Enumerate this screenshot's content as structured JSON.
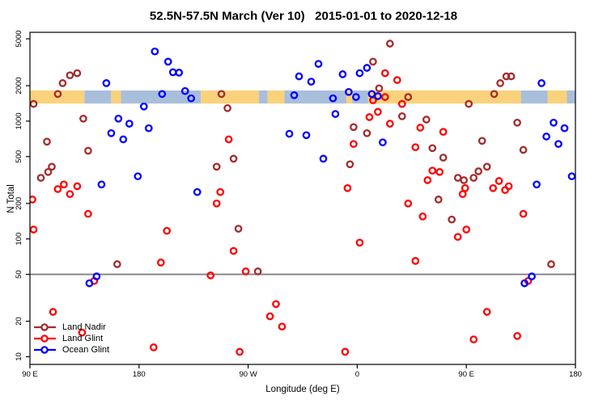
{
  "title": "52.5N-57.5N March (Ver 10)   2015-01-01 to 2020-12-18",
  "x_axis": {
    "label": "Longitude (deg E)",
    "ticks": [
      {
        "lon": 90,
        "label": "90 E"
      },
      {
        "lon": 180,
        "label": "180"
      },
      {
        "lon": 270,
        "label": "90 W"
      },
      {
        "lon": 360,
        "label": "0"
      },
      {
        "lon": 450,
        "label": "90 E"
      },
      {
        "lon": 540,
        "label": "180"
      }
    ]
  },
  "y_axis": {
    "label": "N Total",
    "scale": "log",
    "ticks": [
      10,
      20,
      50,
      100,
      200,
      500,
      1000,
      2000,
      5000
    ]
  },
  "reference_line": {
    "value": 50,
    "color": "#808080"
  },
  "map_band": {
    "meaning": "land(orange)/ocean(blue) strip along longitude for 52.5N-57.5N",
    "top_value": 1820,
    "bottom_value": 1410,
    "land_color": "#FAD27C",
    "ocean_color": "#A9BEDB",
    "segments": [
      {
        "type": "land",
        "from": 90,
        "to": 135
      },
      {
        "type": "ocean",
        "from": 135,
        "to": 157
      },
      {
        "type": "land",
        "from": 157,
        "to": 165
      },
      {
        "type": "ocean",
        "from": 165,
        "to": 231
      },
      {
        "type": "land",
        "from": 231,
        "to": 279
      },
      {
        "type": "ocean",
        "from": 279,
        "to": 286
      },
      {
        "type": "land",
        "from": 286,
        "to": 300
      },
      {
        "type": "ocean",
        "from": 300,
        "to": 351
      },
      {
        "type": "land",
        "from": 351,
        "to": 356
      },
      {
        "type": "ocean",
        "from": 356,
        "to": 369
      },
      {
        "type": "land",
        "from": 369,
        "to": 495
      },
      {
        "type": "ocean",
        "from": 495,
        "to": 517
      },
      {
        "type": "land",
        "from": 517,
        "to": 533
      },
      {
        "type": "ocean",
        "from": 533,
        "to": 540
      }
    ]
  },
  "legend": {
    "items": [
      {
        "label": "Land Nadir",
        "color": "#A52A2A"
      },
      {
        "label": "Land Glint",
        "color": "#FF0000"
      },
      {
        "label": "Ocean Glint",
        "color": "#0000FF"
      }
    ]
  },
  "chart_data": {
    "type": "scatter",
    "title": "52.5N-57.5N March (Ver 10)   2015-01-01 to 2020-12-18",
    "xlabel": "Longitude (deg E)",
    "ylabel": "N Total",
    "xlim": [
      90,
      540
    ],
    "ylim": [
      8.6,
      5674
    ],
    "y_scale": "log",
    "x_note": "axis runs eastward from 90E around the globe to 180 (450 deg span), longitudes >360 wrap",
    "marker": "open-circle",
    "series": [
      {
        "name": "Land Nadir",
        "color": "#A52A2A",
        "points": [
          [
            123,
            2450
          ],
          [
            129,
            2550
          ],
          [
            117,
            2100
          ],
          [
            113,
            1700
          ],
          [
            93,
            1400
          ],
          [
            134,
            1050
          ],
          [
            104,
            670
          ],
          [
            138,
            560
          ],
          [
            108,
            410
          ],
          [
            105,
            370
          ],
          [
            99,
            330
          ],
          [
            162,
            61
          ],
          [
            248,
            1700
          ],
          [
            253,
            1290
          ],
          [
            258,
            480
          ],
          [
            244,
            410
          ],
          [
            262,
            122
          ],
          [
            278,
            53
          ],
          [
            373,
            3200
          ],
          [
            387,
            4550
          ],
          [
            378,
            1900
          ],
          [
            402,
            1600
          ],
          [
            397,
            1100
          ],
          [
            417,
            1030
          ],
          [
            357,
            890
          ],
          [
            368,
            790
          ],
          [
            422,
            590
          ],
          [
            354,
            430
          ],
          [
            431,
            490
          ],
          [
            427,
            216
          ],
          [
            438,
            146
          ],
          [
            463,
            680
          ],
          [
            467,
            410
          ],
          [
            460,
            375
          ],
          [
            456,
            330
          ],
          [
            443,
            330
          ],
          [
            448,
            315
          ],
          [
            478,
            2100
          ],
          [
            483,
            2400
          ],
          [
            487,
            2400
          ],
          [
            473,
            1700
          ],
          [
            452,
            1400
          ],
          [
            492,
            970
          ],
          [
            497,
            570
          ],
          [
            520,
            61
          ]
        ]
      },
      {
        "name": "Land Glint",
        "color": "#FF0000",
        "points": [
          [
            118,
            290
          ],
          [
            113,
            265
          ],
          [
            129,
            280
          ],
          [
            123,
            240
          ],
          [
            92,
            216
          ],
          [
            138,
            163
          ],
          [
            93,
            120
          ],
          [
            203,
            117
          ],
          [
            198,
            63
          ],
          [
            109,
            24
          ],
          [
            133,
            16
          ],
          [
            192,
            12
          ],
          [
            143,
            44
          ],
          [
            254,
            700
          ],
          [
            247,
            250
          ],
          [
            244,
            200
          ],
          [
            258,
            79
          ],
          [
            239,
            49
          ],
          [
            268,
            53
          ],
          [
            293,
            28
          ],
          [
            288,
            22
          ],
          [
            298,
            18
          ],
          [
            263,
            11
          ],
          [
            383,
            2550
          ],
          [
            393,
            2230
          ],
          [
            373,
            1500
          ],
          [
            383,
            1600
          ],
          [
            397,
            1400
          ],
          [
            377,
            1200
          ],
          [
            370,
            1080
          ],
          [
            387,
            950
          ],
          [
            412,
            880
          ],
          [
            357,
            640
          ],
          [
            408,
            600
          ],
          [
            422,
            380
          ],
          [
            428,
            370
          ],
          [
            418,
            315
          ],
          [
            352,
            270
          ],
          [
            402,
            200
          ],
          [
            414,
            155
          ],
          [
            362,
            93
          ],
          [
            408,
            65
          ],
          [
            350,
            11
          ],
          [
            431,
            810
          ],
          [
            449,
            270
          ],
          [
            477,
            310
          ],
          [
            472,
            270
          ],
          [
            482,
            260
          ],
          [
            485,
            280
          ],
          [
            447,
            240
          ],
          [
            497,
            163
          ],
          [
            450,
            120
          ],
          [
            443,
            104
          ],
          [
            501,
            44
          ],
          [
            467,
            24
          ],
          [
            456,
            14
          ],
          [
            492,
            15
          ]
        ]
      },
      {
        "name": "Ocean Glint",
        "color": "#0000FF",
        "points": [
          [
            193,
            3900
          ],
          [
            204,
            3200
          ],
          [
            208,
            2600
          ],
          [
            213,
            2580
          ],
          [
            153,
            2100
          ],
          [
            199,
            1700
          ],
          [
            218,
            1800
          ],
          [
            223,
            1560
          ],
          [
            184,
            1330
          ],
          [
            163,
            1050
          ],
          [
            172,
            950
          ],
          [
            188,
            870
          ],
          [
            157,
            790
          ],
          [
            167,
            700
          ],
          [
            179,
            340
          ],
          [
            149,
            290
          ],
          [
            145,
            48
          ],
          [
            139,
            42
          ],
          [
            228,
            250
          ],
          [
            312,
            2400
          ],
          [
            322,
            2160
          ],
          [
            308,
            1660
          ],
          [
            304,
            780
          ],
          [
            318,
            760
          ],
          [
            328,
            3060
          ],
          [
            348,
            2500
          ],
          [
            362,
            2550
          ],
          [
            368,
            2830
          ],
          [
            353,
            1770
          ],
          [
            359,
            1600
          ],
          [
            340,
            1560
          ],
          [
            372,
            1700
          ],
          [
            377,
            1630
          ],
          [
            342,
            1150
          ],
          [
            381,
            660
          ],
          [
            332,
            480
          ],
          [
            512,
            2100
          ],
          [
            522,
            970
          ],
          [
            531,
            870
          ],
          [
            516,
            740
          ],
          [
            526,
            640
          ],
          [
            508,
            290
          ],
          [
            537,
            340
          ],
          [
            504,
            48
          ],
          [
            498,
            42
          ]
        ]
      }
    ]
  }
}
